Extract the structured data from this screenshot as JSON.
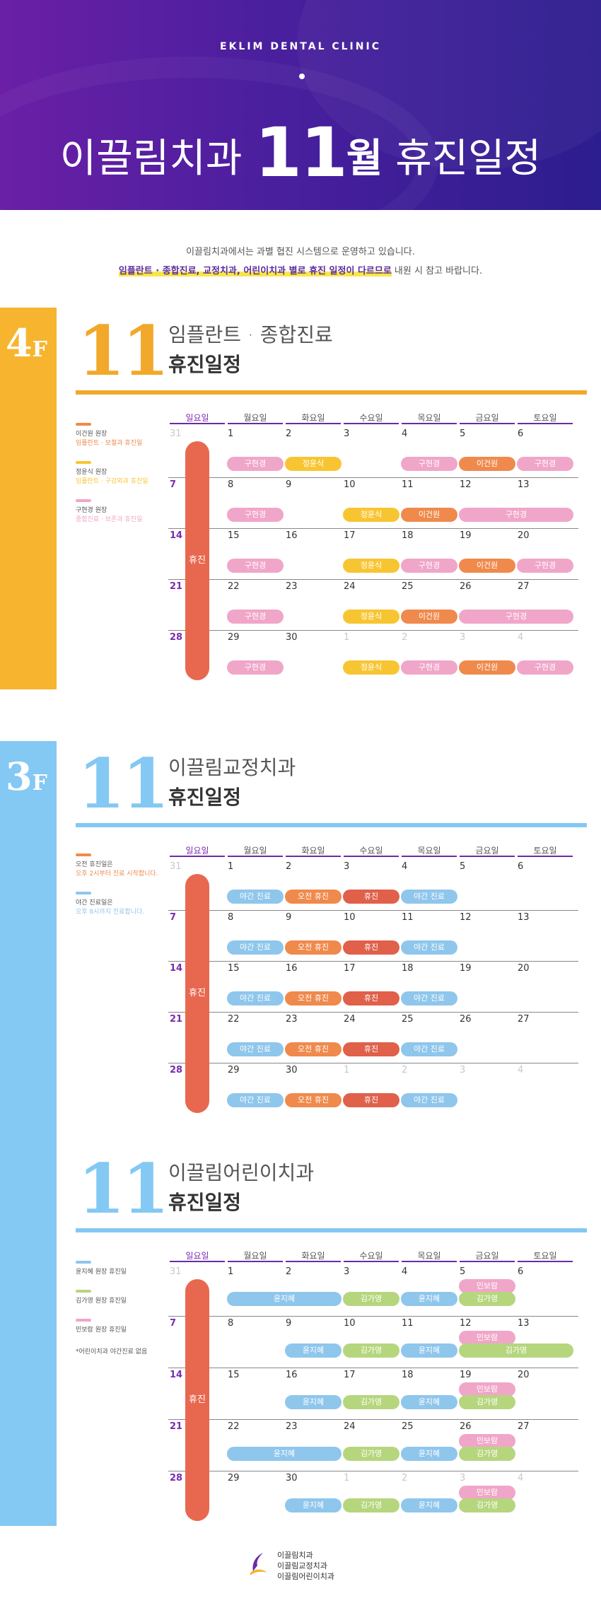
{
  "header": {
    "brand": "EKLIM DENTAL CLINIC",
    "title_pre": "이끌림치과",
    "title_month": "11",
    "title_wol": "월",
    "title_post": "휴진일정"
  },
  "intro": {
    "line1": "이끌림치과에서는 과별 협진 시스템으로 운영하고 있습니다.",
    "line2_highlight": "임플란트 · 종합진료, 교정치과, 어린이치과 별로 휴진 일정이 다르므로",
    "line2_rest": " 내원 시 참고 바랍니다."
  },
  "weekdays": [
    "일요일",
    "월요일",
    "화요일",
    "수요일",
    "목요일",
    "금요일",
    "토요일"
  ],
  "closed_label": "휴진",
  "colors": {
    "pink": "#f0a6c8",
    "yellow": "#f8c532",
    "orange": "#ef8a4c",
    "blue": "#8fc6ec",
    "red": "#e0604a",
    "green": "#b6d67e",
    "floor4": "#f7b52f",
    "floor3": "#84c8f4"
  },
  "sections": [
    {
      "floor": "4",
      "floor_suffix": "F",
      "num": "11",
      "title": "임플란트 · 종합진료",
      "subtitle": "휴진일정",
      "legend": [
        {
          "color": "orange",
          "line1": "이건원 원장",
          "line2": "임플란트 · 보철과 휴진일"
        },
        {
          "color": "yellow",
          "line1": "정윤식 원장",
          "line2": "임플란트 · 구강외과 휴진일"
        },
        {
          "color": "pink",
          "line1": "구현경 원장",
          "line2": "종합진료 · 보존과 휴진일"
        }
      ],
      "weeks": [
        {
          "days": [
            "31",
            "1",
            "2",
            "3",
            "4",
            "5",
            "6"
          ],
          "dim": [
            0
          ],
          "pills": [
            {
              "col": 1,
              "span": 1,
              "color": "pink",
              "label": "구현경"
            },
            {
              "col": 2,
              "span": 1,
              "color": "yellow",
              "label": "정윤식"
            },
            {
              "col": 4,
              "span": 1,
              "color": "pink",
              "label": "구현경"
            },
            {
              "col": 5,
              "span": 1,
              "color": "orange",
              "label": "이건원"
            },
            {
              "col": 6,
              "span": 1,
              "color": "pink",
              "label": "구현경"
            }
          ]
        },
        {
          "days": [
            "7",
            "8",
            "9",
            "10",
            "11",
            "12",
            "13"
          ],
          "dim": [],
          "pills": [
            {
              "col": 1,
              "span": 1,
              "color": "pink",
              "label": "구현경"
            },
            {
              "col": 3,
              "span": 1,
              "color": "yellow",
              "label": "정윤식"
            },
            {
              "col": 4,
              "span": 1,
              "color": "orange",
              "label": "이건원"
            },
            {
              "col": 5,
              "span": 2,
              "color": "pink",
              "label": "구현경"
            }
          ]
        },
        {
          "days": [
            "14",
            "15",
            "16",
            "17",
            "18",
            "19",
            "20"
          ],
          "dim": [],
          "pills": [
            {
              "col": 1,
              "span": 1,
              "color": "pink",
              "label": "구현경"
            },
            {
              "col": 3,
              "span": 1,
              "color": "yellow",
              "label": "정윤식"
            },
            {
              "col": 4,
              "span": 1,
              "color": "pink",
              "label": "구현경"
            },
            {
              "col": 5,
              "span": 1,
              "color": "orange",
              "label": "이건원"
            },
            {
              "col": 6,
              "span": 1,
              "color": "pink",
              "label": "구현경"
            }
          ]
        },
        {
          "days": [
            "21",
            "22",
            "23",
            "24",
            "25",
            "26",
            "27"
          ],
          "dim": [],
          "pills": [
            {
              "col": 1,
              "span": 1,
              "color": "pink",
              "label": "구현경"
            },
            {
              "col": 3,
              "span": 1,
              "color": "yellow",
              "label": "정윤식"
            },
            {
              "col": 4,
              "span": 1,
              "color": "orange",
              "label": "이건원"
            },
            {
              "col": 5,
              "span": 2,
              "color": "pink",
              "label": "구현경"
            }
          ]
        },
        {
          "days": [
            "28",
            "29",
            "30",
            "1",
            "2",
            "3",
            "4"
          ],
          "dim": [
            3,
            4,
            5,
            6
          ],
          "pills": [
            {
              "col": 1,
              "span": 1,
              "color": "pink",
              "label": "구현경"
            },
            {
              "col": 3,
              "span": 1,
              "color": "yellow",
              "label": "정윤식"
            },
            {
              "col": 4,
              "span": 1,
              "color": "pink",
              "label": "구현경"
            },
            {
              "col": 5,
              "span": 1,
              "color": "orange",
              "label": "이건원"
            },
            {
              "col": 6,
              "span": 1,
              "color": "pink",
              "label": "구현경"
            }
          ]
        }
      ]
    },
    {
      "floor": "3",
      "floor_suffix": "F",
      "num": "11",
      "title": "이끌림교정치과",
      "subtitle": "휴진일정",
      "legend": [
        {
          "color": "orange",
          "line1": "오전 휴진일은",
          "line2": "오후 2시부터 진료 시작합니다."
        },
        {
          "color": "blue",
          "line1": "야간 진료일은",
          "line2": "오후 8시까지 진료합니다."
        }
      ],
      "weeks": [
        {
          "days": [
            "31",
            "1",
            "2",
            "3",
            "4",
            "5",
            "6"
          ],
          "dim": [
            0
          ],
          "pills": [
            {
              "col": 1,
              "span": 1,
              "color": "blue",
              "label": "야간 진료"
            },
            {
              "col": 2,
              "span": 1,
              "color": "orange",
              "label": "오전 휴진"
            },
            {
              "col": 3,
              "span": 1,
              "color": "red",
              "label": "휴진"
            },
            {
              "col": 4,
              "span": 1,
              "color": "blue",
              "label": "야간 진료"
            }
          ]
        },
        {
          "days": [
            "7",
            "8",
            "9",
            "10",
            "11",
            "12",
            "13"
          ],
          "dim": [],
          "pills": [
            {
              "col": 1,
              "span": 1,
              "color": "blue",
              "label": "야간 진료"
            },
            {
              "col": 2,
              "span": 1,
              "color": "orange",
              "label": "오전 휴진"
            },
            {
              "col": 3,
              "span": 1,
              "color": "red",
              "label": "휴진"
            },
            {
              "col": 4,
              "span": 1,
              "color": "blue",
              "label": "야간 진료"
            }
          ]
        },
        {
          "days": [
            "14",
            "15",
            "16",
            "17",
            "18",
            "19",
            "20"
          ],
          "dim": [],
          "pills": [
            {
              "col": 1,
              "span": 1,
              "color": "blue",
              "label": "야간 진료"
            },
            {
              "col": 2,
              "span": 1,
              "color": "orange",
              "label": "오전 휴진"
            },
            {
              "col": 3,
              "span": 1,
              "color": "red",
              "label": "휴진"
            },
            {
              "col": 4,
              "span": 1,
              "color": "blue",
              "label": "야간 진료"
            }
          ]
        },
        {
          "days": [
            "21",
            "22",
            "23",
            "24",
            "25",
            "26",
            "27"
          ],
          "dim": [],
          "pills": [
            {
              "col": 1,
              "span": 1,
              "color": "blue",
              "label": "야간 진료"
            },
            {
              "col": 2,
              "span": 1,
              "color": "orange",
              "label": "오전 휴진"
            },
            {
              "col": 3,
              "span": 1,
              "color": "red",
              "label": "휴진"
            },
            {
              "col": 4,
              "span": 1,
              "color": "blue",
              "label": "야간 진료"
            }
          ]
        },
        {
          "days": [
            "28",
            "29",
            "30",
            "1",
            "2",
            "3",
            "4"
          ],
          "dim": [
            3,
            4,
            5,
            6
          ],
          "pills": [
            {
              "col": 1,
              "span": 1,
              "color": "blue",
              "label": "야간 진료"
            },
            {
              "col": 2,
              "span": 1,
              "color": "orange",
              "label": "오전 휴진"
            },
            {
              "col": 3,
              "span": 1,
              "color": "red",
              "label": "휴진"
            },
            {
              "col": 4,
              "span": 1,
              "color": "blue",
              "label": "야간 진료"
            }
          ]
        }
      ]
    },
    {
      "floor": "",
      "floor_suffix": "",
      "num": "11",
      "title": "이끌림어린이치과",
      "subtitle": "휴진일정",
      "legend": [
        {
          "color": "blue",
          "line1": "윤지혜 원장 휴진일",
          "line2": ""
        },
        {
          "color": "green",
          "line1": "김가영 원장 휴진일",
          "line2": ""
        },
        {
          "color": "pink",
          "line1": "민보람 원장 휴진일",
          "line2": ""
        }
      ],
      "legend_note": "*어린이치과 야간진료 없음",
      "weeks": [
        {
          "days": [
            "31",
            "1",
            "2",
            "3",
            "4",
            "5",
            "6"
          ],
          "dim": [
            0
          ],
          "pills": [
            {
              "col": 5,
              "span": 1,
              "color": "pink",
              "label": "민보람",
              "row": 0
            },
            {
              "col": 1,
              "span": 2,
              "color": "blue",
              "label": "윤지혜",
              "row": 1
            },
            {
              "col": 3,
              "span": 1,
              "color": "green",
              "label": "김가영",
              "row": 1
            },
            {
              "col": 4,
              "span": 1,
              "color": "blue",
              "label": "윤지혜",
              "row": 1
            },
            {
              "col": 5,
              "span": 1,
              "color": "green",
              "label": "김가영",
              "row": 1
            }
          ]
        },
        {
          "days": [
            "7",
            "8",
            "9",
            "10",
            "11",
            "12",
            "13"
          ],
          "dim": [],
          "pills": [
            {
              "col": 5,
              "span": 1,
              "color": "pink",
              "label": "민보람",
              "row": 0
            },
            {
              "col": 2,
              "span": 1,
              "color": "blue",
              "label": "윤지혜",
              "row": 1
            },
            {
              "col": 3,
              "span": 1,
              "color": "green",
              "label": "김가영",
              "row": 1
            },
            {
              "col": 4,
              "span": 1,
              "color": "blue",
              "label": "윤지혜",
              "row": 1
            },
            {
              "col": 5,
              "span": 2,
              "color": "green",
              "label": "김가영",
              "row": 1
            }
          ]
        },
        {
          "days": [
            "14",
            "15",
            "16",
            "17",
            "18",
            "19",
            "20"
          ],
          "dim": [],
          "pills": [
            {
              "col": 5,
              "span": 1,
              "color": "pink",
              "label": "민보람",
              "row": 0
            },
            {
              "col": 2,
              "span": 1,
              "color": "blue",
              "label": "윤지혜",
              "row": 1
            },
            {
              "col": 3,
              "span": 1,
              "color": "green",
              "label": "김가영",
              "row": 1
            },
            {
              "col": 4,
              "span": 1,
              "color": "blue",
              "label": "윤지혜",
              "row": 1
            },
            {
              "col": 5,
              "span": 1,
              "color": "green",
              "label": "김가영",
              "row": 1
            }
          ]
        },
        {
          "days": [
            "21",
            "22",
            "23",
            "24",
            "25",
            "26",
            "27"
          ],
          "dim": [],
          "pills": [
            {
              "col": 5,
              "span": 1,
              "color": "pink",
              "label": "민보람",
              "row": 0
            },
            {
              "col": 1,
              "span": 2,
              "color": "blue",
              "label": "윤지혜",
              "row": 1
            },
            {
              "col": 3,
              "span": 1,
              "color": "green",
              "label": "김가영",
              "row": 1
            },
            {
              "col": 4,
              "span": 1,
              "color": "blue",
              "label": "윤지혜",
              "row": 1
            },
            {
              "col": 5,
              "span": 1,
              "color": "green",
              "label": "김가영",
              "row": 1
            }
          ]
        },
        {
          "days": [
            "28",
            "29",
            "30",
            "1",
            "2",
            "3",
            "4"
          ],
          "dim": [
            3,
            4,
            5,
            6
          ],
          "pills": [
            {
              "col": 5,
              "span": 1,
              "color": "pink",
              "label": "민보람",
              "row": 0
            },
            {
              "col": 2,
              "span": 1,
              "color": "blue",
              "label": "윤지혜",
              "row": 1
            },
            {
              "col": 3,
              "span": 1,
              "color": "green",
              "label": "김가영",
              "row": 1
            },
            {
              "col": 4,
              "span": 1,
              "color": "blue",
              "label": "윤지혜",
              "row": 1
            },
            {
              "col": 5,
              "span": 1,
              "color": "green",
              "label": "김가영",
              "row": 1
            }
          ]
        }
      ]
    }
  ],
  "footer": {
    "names": [
      "이끌림치과",
      "이끌림교정치과",
      "이끌림어린이치과"
    ]
  }
}
